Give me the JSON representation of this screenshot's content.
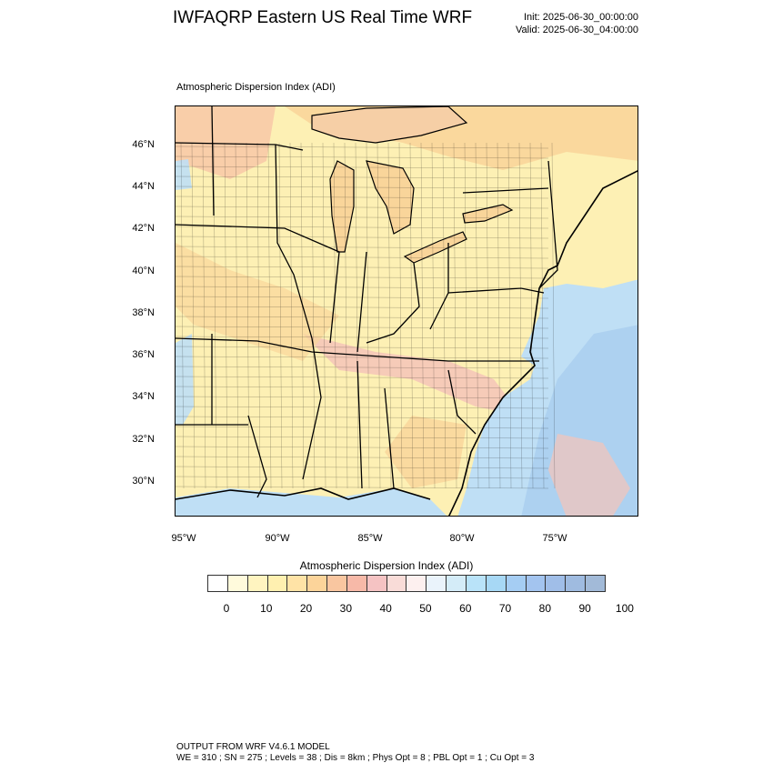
{
  "header": {
    "title": "IWFAQRP Eastern US Real Time WRF",
    "init": "Init: 2025-06-30_00:00:00",
    "valid": "Valid: 2025-06-30_04:00:00"
  },
  "map": {
    "subtitle": "Atmospheric Dispersion Index   (ADI)",
    "lat_labels": [
      "46°N",
      "44°N",
      "42°N",
      "40°N",
      "38°N",
      "36°N",
      "34°N",
      "32°N",
      "30°N"
    ],
    "lon_labels": [
      "95°W",
      "90°W",
      "85°W",
      "80°W",
      "75°W"
    ],
    "palette": {
      "land_base": "#fdf0b4",
      "land_orange": "#f9d59a",
      "land_pink": "#f5c4b8",
      "water_blue": "#bfdff5",
      "water_deep": "#a9cdef",
      "borders": "#000000"
    }
  },
  "colorbar": {
    "title": "Atmospheric Dispersion Index  (ADI)",
    "colors": [
      "#ffffff",
      "#fffadc",
      "#fff4c0",
      "#fff0b0",
      "#ffe3a6",
      "#fcd49a",
      "#f9c6a0",
      "#f7b9a8",
      "#f5c3c3",
      "#f9dcd8",
      "#fdf0ef",
      "#eaf3fb",
      "#d4ecf8",
      "#b9e3f9",
      "#a7d8f5",
      "#a5cdf3",
      "#a3c4ef",
      "#a0bee8",
      "#9fbbe0",
      "#a2bad8"
    ],
    "ticks": [
      "0",
      "10",
      "20",
      "30",
      "40",
      "50",
      "60",
      "70",
      "80",
      "90",
      "100"
    ]
  },
  "footer": {
    "line1": "OUTPUT FROM WRF V4.6.1 MODEL",
    "line2": "WE = 310 ; SN = 275 ; Levels = 38 ; Dis = 8km ; Phys Opt = 8 ; PBL Opt = 1 ; Cu Opt = 3"
  }
}
